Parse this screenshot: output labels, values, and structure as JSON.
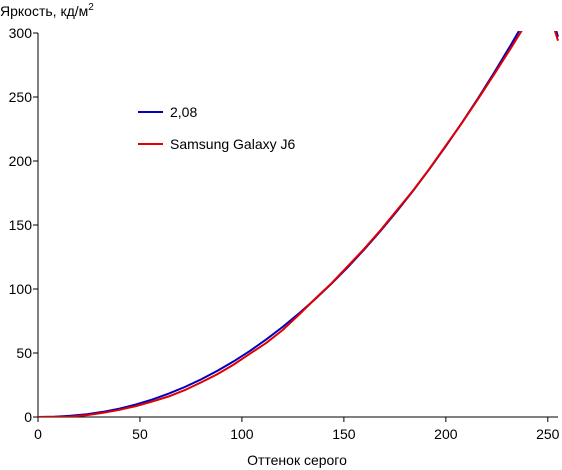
{
  "chart_data": {
    "type": "line",
    "title": "",
    "ylabel": "Яркость, кд/м",
    "ylabel_superscript": "2",
    "xlabel": "Оттенок серого",
    "xlim": [
      0,
      255
    ],
    "ylim": [
      0,
      300
    ],
    "xticks": [
      "0",
      "50",
      "100",
      "150",
      "200",
      "250"
    ],
    "yticks": [
      "0",
      "50",
      "100",
      "150",
      "200",
      "250",
      "300"
    ],
    "grid": false,
    "legend_position": "upper-left",
    "series": [
      {
        "name": "2,08",
        "color": "#0000c0",
        "x": [
          0,
          8,
          16,
          24,
          32,
          40,
          48,
          56,
          64,
          72,
          80,
          88,
          96,
          104,
          112,
          120,
          128,
          136,
          144,
          152,
          160,
          168,
          176,
          184,
          192,
          200,
          208,
          216,
          224,
          232,
          240,
          248,
          255
        ],
        "y": [
          0,
          0.2,
          0.9,
          2.2,
          4.1,
          6.6,
          9.8,
          13.6,
          18.2,
          23.4,
          29.4,
          36.1,
          43.5,
          51.7,
          60.7,
          70.4,
          80.9,
          92.2,
          104.3,
          117.2,
          130.9,
          145.4,
          160.7,
          176.8,
          193.8,
          211.6,
          230.2,
          249.6,
          269.9,
          291.0,
          312.9,
          335.7,
          297.0
        ]
      },
      {
        "name": "Samsung Galaxy J6",
        "color": "#e00000",
        "x": [
          0,
          16,
          24,
          32,
          40,
          48,
          56,
          64,
          72,
          80,
          88,
          96,
          104,
          112,
          120,
          128,
          136,
          144,
          152,
          160,
          168,
          176,
          184,
          192,
          200,
          208,
          216,
          224,
          232,
          240,
          248,
          255
        ],
        "y": [
          0,
          0.3,
          1.5,
          3.3,
          5.6,
          8.5,
          12.0,
          16.0,
          21.0,
          27.0,
          33.5,
          41.0,
          49.5,
          58.0,
          68.0,
          80.0,
          92.5,
          104.5,
          118.0,
          131.5,
          146.0,
          161.5,
          177.0,
          194.0,
          212.0,
          230.0,
          249.0,
          268.5,
          288.5,
          309.0,
          330.0,
          294.0
        ]
      }
    ]
  }
}
